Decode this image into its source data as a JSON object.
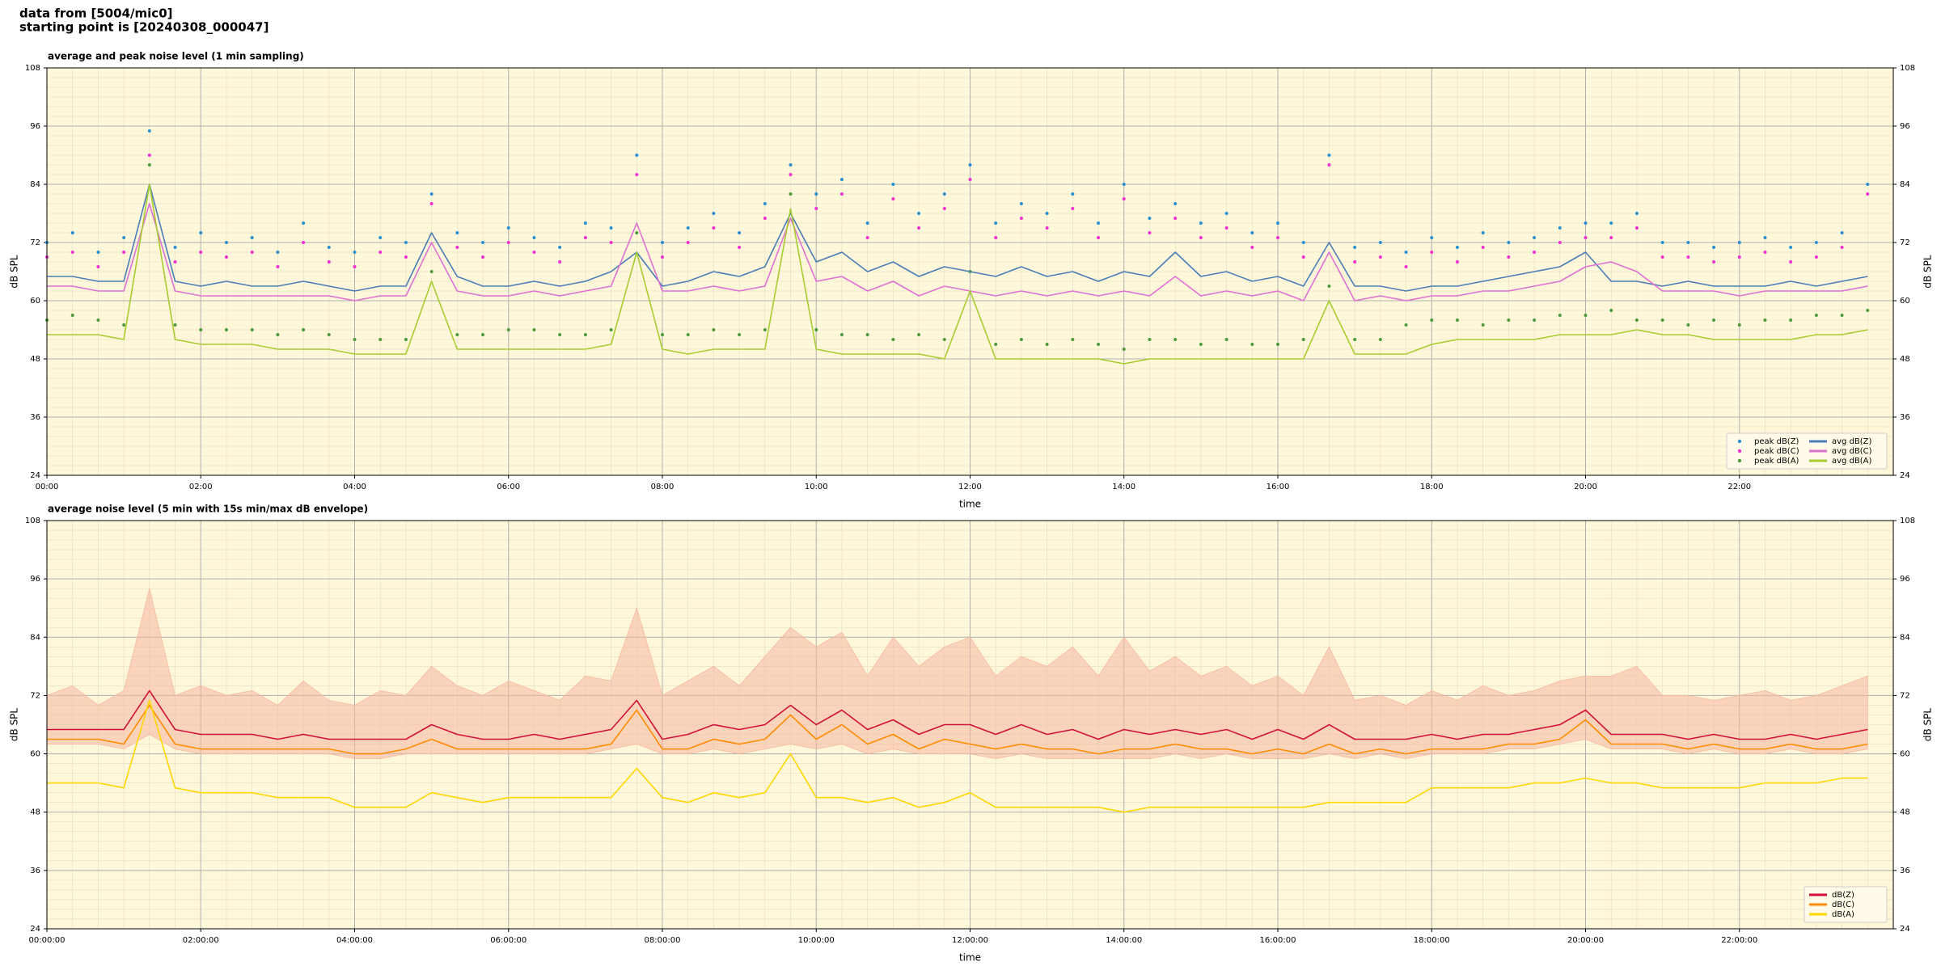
{
  "header": {
    "lines": [
      "data from [5004/mic0]",
      "starting point is [20240308_000047]"
    ]
  },
  "chart_data": [
    {
      "type": "line",
      "title": "average and peak noise level (1 min sampling)",
      "xlabel": "time",
      "ylabel": "dB SPL",
      "x": [
        "00:00",
        "00:20",
        "00:40",
        "01:00",
        "01:20",
        "01:40",
        "02:00",
        "02:20",
        "02:40",
        "03:00",
        "03:20",
        "03:40",
        "04:00",
        "04:20",
        "04:40",
        "05:00",
        "05:20",
        "05:40",
        "06:00",
        "06:20",
        "06:40",
        "07:00",
        "07:20",
        "07:40",
        "08:00",
        "08:20",
        "08:40",
        "09:00",
        "09:20",
        "09:40",
        "10:00",
        "10:20",
        "10:40",
        "11:00",
        "11:20",
        "11:40",
        "12:00",
        "12:20",
        "12:40",
        "13:00",
        "13:20",
        "13:40",
        "14:00",
        "14:20",
        "14:40",
        "15:00",
        "15:20",
        "15:40",
        "16:00",
        "16:20",
        "16:40",
        "17:00",
        "17:20",
        "17:40",
        "18:00",
        "18:20",
        "18:40",
        "19:00",
        "19:20",
        "19:40",
        "20:00",
        "20:20",
        "20:40",
        "21:00",
        "21:20",
        "21:40",
        "22:00",
        "22:20",
        "22:40",
        "23:00",
        "23:20",
        "23:40"
      ],
      "xlim": [
        "00:00",
        "24:00"
      ],
      "xticks": [
        "00:00",
        "02:00",
        "04:00",
        "06:00",
        "08:00",
        "10:00",
        "12:00",
        "14:00",
        "16:00",
        "18:00",
        "20:00",
        "22:00"
      ],
      "ylim": [
        24,
        108
      ],
      "yticks": [
        24,
        36,
        48,
        60,
        72,
        84,
        96,
        108
      ],
      "grid": true,
      "legend": "lower right",
      "legend_columns": 2,
      "series": [
        {
          "name": "peak dB(Z)",
          "kind": "scatter",
          "color": "#2b8fd0",
          "values": [
            72,
            74,
            70,
            73,
            95,
            71,
            74,
            72,
            73,
            70,
            76,
            71,
            70,
            73,
            72,
            82,
            74,
            72,
            75,
            73,
            71,
            76,
            75,
            90,
            72,
            75,
            78,
            74,
            80,
            88,
            82,
            85,
            76,
            84,
            78,
            82,
            88,
            76,
            80,
            78,
            82,
            76,
            84,
            77,
            80,
            76,
            78,
            74,
            76,
            72,
            90,
            71,
            72,
            70,
            73,
            71,
            74,
            72,
            73,
            75,
            76,
            76,
            78,
            72,
            72,
            71,
            72,
            73,
            71,
            72,
            74,
            84
          ]
        },
        {
          "name": "peak dB(C)",
          "kind": "scatter",
          "color": "#f030d0",
          "values": [
            69,
            70,
            67,
            70,
            90,
            68,
            70,
            69,
            70,
            67,
            72,
            68,
            67,
            70,
            69,
            80,
            71,
            69,
            72,
            70,
            68,
            73,
            72,
            86,
            69,
            72,
            75,
            71,
            77,
            86,
            79,
            82,
            73,
            81,
            75,
            79,
            85,
            73,
            77,
            75,
            79,
            73,
            81,
            74,
            77,
            73,
            75,
            71,
            73,
            69,
            88,
            68,
            69,
            67,
            70,
            68,
            71,
            69,
            70,
            72,
            73,
            73,
            75,
            69,
            69,
            68,
            69,
            70,
            68,
            69,
            71,
            82
          ]
        },
        {
          "name": "peak dB(A)",
          "kind": "scatter",
          "color": "#4f9a3c",
          "values": [
            56,
            57,
            56,
            55,
            88,
            55,
            54,
            54,
            54,
            53,
            54,
            53,
            52,
            52,
            52,
            66,
            53,
            53,
            54,
            54,
            53,
            53,
            54,
            74,
            53,
            53,
            54,
            53,
            54,
            82,
            54,
            53,
            53,
            52,
            53,
            52,
            66,
            51,
            52,
            51,
            52,
            51,
            50,
            52,
            52,
            51,
            52,
            51,
            51,
            52,
            63,
            52,
            52,
            55,
            56,
            56,
            55,
            56,
            56,
            57,
            57,
            58,
            56,
            56,
            55,
            56,
            55,
            56,
            56,
            57,
            57,
            58
          ]
        },
        {
          "name": "avg dB(Z)",
          "kind": "line",
          "color": "#4a7db8",
          "values": [
            65,
            65,
            64,
            64,
            84,
            64,
            63,
            64,
            63,
            63,
            64,
            63,
            62,
            63,
            63,
            74,
            65,
            63,
            63,
            64,
            63,
            64,
            66,
            70,
            63,
            64,
            66,
            65,
            67,
            78,
            68,
            70,
            66,
            68,
            65,
            67,
            66,
            65,
            67,
            65,
            66,
            64,
            66,
            65,
            70,
            65,
            66,
            64,
            65,
            63,
            72,
            63,
            63,
            62,
            63,
            63,
            64,
            65,
            66,
            67,
            70,
            64,
            64,
            63,
            64,
            63,
            63,
            63,
            64,
            63,
            64,
            65
          ]
        },
        {
          "name": "avg dB(C)",
          "kind": "line",
          "color": "#e070d4",
          "values": [
            63,
            63,
            62,
            62,
            80,
            62,
            61,
            61,
            61,
            61,
            61,
            61,
            60,
            61,
            61,
            72,
            62,
            61,
            61,
            62,
            61,
            62,
            63,
            76,
            62,
            62,
            63,
            62,
            63,
            77,
            64,
            65,
            62,
            64,
            61,
            63,
            62,
            61,
            62,
            61,
            62,
            61,
            62,
            61,
            65,
            61,
            62,
            61,
            62,
            60,
            70,
            60,
            61,
            60,
            61,
            61,
            62,
            62,
            63,
            64,
            67,
            68,
            66,
            62,
            62,
            62,
            61,
            62,
            62,
            62,
            62,
            63
          ]
        },
        {
          "name": "avg dB(A)",
          "kind": "line",
          "color": "#a8cc30",
          "values": [
            53,
            53,
            53,
            52,
            84,
            52,
            51,
            51,
            51,
            50,
            50,
            50,
            49,
            49,
            49,
            64,
            50,
            50,
            50,
            50,
            50,
            50,
            51,
            70,
            50,
            49,
            50,
            50,
            50,
            79,
            50,
            49,
            49,
            49,
            49,
            48,
            62,
            48,
            48,
            48,
            48,
            48,
            47,
            48,
            48,
            48,
            48,
            48,
            48,
            48,
            60,
            49,
            49,
            49,
            51,
            52,
            52,
            52,
            52,
            53,
            53,
            53,
            54,
            53,
            53,
            52,
            52,
            52,
            52,
            53,
            53,
            54
          ]
        }
      ]
    },
    {
      "type": "line",
      "title": "average noise level (5 min with 15s min/max dB envelope)",
      "xlabel": "time",
      "ylabel": "dB SPL",
      "x": [
        "00:00:00",
        "00:20:00",
        "00:40:00",
        "01:00:00",
        "01:20:00",
        "01:40:00",
        "02:00:00",
        "02:20:00",
        "02:40:00",
        "03:00:00",
        "03:20:00",
        "03:40:00",
        "04:00:00",
        "04:20:00",
        "04:40:00",
        "05:00:00",
        "05:20:00",
        "05:40:00",
        "06:00:00",
        "06:20:00",
        "06:40:00",
        "07:00:00",
        "07:20:00",
        "07:40:00",
        "08:00:00",
        "08:20:00",
        "08:40:00",
        "09:00:00",
        "09:20:00",
        "09:40:00",
        "10:00:00",
        "10:20:00",
        "10:40:00",
        "11:00:00",
        "11:20:00",
        "11:40:00",
        "12:00:00",
        "12:20:00",
        "12:40:00",
        "13:00:00",
        "13:20:00",
        "13:40:00",
        "14:00:00",
        "14:20:00",
        "14:40:00",
        "15:00:00",
        "15:20:00",
        "15:40:00",
        "16:00:00",
        "16:20:00",
        "16:40:00",
        "17:00:00",
        "17:20:00",
        "17:40:00",
        "18:00:00",
        "18:20:00",
        "18:40:00",
        "19:00:00",
        "19:20:00",
        "19:40:00",
        "20:00:00",
        "20:20:00",
        "20:40:00",
        "21:00:00",
        "21:20:00",
        "21:40:00",
        "22:00:00",
        "22:20:00",
        "22:40:00",
        "23:00:00",
        "23:20:00",
        "23:40:00"
      ],
      "xlim": [
        "00:00:00",
        "24:00:00"
      ],
      "xticks": [
        "00:00:00",
        "02:00:00",
        "04:00:00",
        "06:00:00",
        "08:00:00",
        "10:00:00",
        "12:00:00",
        "14:00:00",
        "16:00:00",
        "18:00:00",
        "20:00:00",
        "22:00:00"
      ],
      "ylim": [
        24,
        108
      ],
      "yticks": [
        24,
        36,
        48,
        60,
        72,
        84,
        96,
        108
      ],
      "grid": true,
      "legend": "lower right",
      "legend_columns": 1,
      "envelope": {
        "color": "#f6b8a0",
        "max": [
          72,
          74,
          70,
          73,
          94,
          72,
          74,
          72,
          73,
          70,
          75,
          71,
          70,
          73,
          72,
          78,
          74,
          72,
          75,
          73,
          71,
          76,
          75,
          90,
          72,
          75,
          78,
          74,
          80,
          86,
          82,
          85,
          76,
          84,
          78,
          82,
          84,
          76,
          80,
          78,
          82,
          76,
          84,
          77,
          80,
          76,
          78,
          74,
          76,
          72,
          82,
          71,
          72,
          70,
          73,
          71,
          74,
          72,
          73,
          75,
          76,
          76,
          78,
          72,
          72,
          71,
          72,
          73,
          71,
          72,
          74,
          76
        ],
        "min": [
          62,
          62,
          62,
          61,
          64,
          61,
          60,
          60,
          60,
          60,
          60,
          60,
          59,
          59,
          60,
          60,
          60,
          60,
          60,
          60,
          60,
          60,
          61,
          62,
          60,
          60,
          61,
          60,
          61,
          62,
          61,
          62,
          60,
          61,
          60,
          60,
          60,
          59,
          60,
          59,
          59,
          59,
          59,
          59,
          60,
          59,
          60,
          59,
          59,
          59,
          60,
          59,
          60,
          59,
          60,
          60,
          60,
          61,
          61,
          62,
          63,
          61,
          61,
          61,
          60,
          61,
          60,
          60,
          61,
          60,
          60,
          61
        ]
      },
      "series": [
        {
          "name": "dB(Z)",
          "kind": "line",
          "color": "#d01038",
          "values": [
            65,
            65,
            65,
            65,
            73,
            65,
            64,
            64,
            64,
            63,
            64,
            63,
            63,
            63,
            63,
            66,
            64,
            63,
            63,
            64,
            63,
            64,
            65,
            71,
            63,
            64,
            66,
            65,
            66,
            70,
            66,
            69,
            65,
            67,
            64,
            66,
            66,
            64,
            66,
            64,
            65,
            63,
            65,
            64,
            65,
            64,
            65,
            63,
            65,
            63,
            66,
            63,
            63,
            63,
            64,
            63,
            64,
            64,
            65,
            66,
            69,
            64,
            64,
            64,
            63,
            64,
            63,
            63,
            64,
            63,
            64,
            65
          ]
        },
        {
          "name": "dB(C)",
          "kind": "line",
          "color": "#ff8c00",
          "values": [
            63,
            63,
            63,
            62,
            70,
            62,
            61,
            61,
            61,
            61,
            61,
            61,
            60,
            60,
            61,
            63,
            61,
            61,
            61,
            61,
            61,
            61,
            62,
            69,
            61,
            61,
            63,
            62,
            63,
            68,
            63,
            66,
            62,
            64,
            61,
            63,
            62,
            61,
            62,
            61,
            61,
            60,
            61,
            61,
            62,
            61,
            61,
            60,
            61,
            60,
            62,
            60,
            61,
            60,
            61,
            61,
            61,
            62,
            62,
            63,
            67,
            62,
            62,
            62,
            61,
            62,
            61,
            61,
            62,
            61,
            61,
            62
          ]
        },
        {
          "name": "dB(A)",
          "kind": "line",
          "color": "#ffd700",
          "values": [
            54,
            54,
            54,
            53,
            71,
            53,
            52,
            52,
            52,
            51,
            51,
            51,
            49,
            49,
            49,
            52,
            51,
            50,
            51,
            51,
            51,
            51,
            51,
            57,
            51,
            50,
            52,
            51,
            52,
            60,
            51,
            51,
            50,
            51,
            49,
            50,
            52,
            49,
            49,
            49,
            49,
            49,
            48,
            49,
            49,
            49,
            49,
            49,
            49,
            49,
            50,
            50,
            50,
            50,
            53,
            53,
            53,
            53,
            54,
            54,
            55,
            54,
            54,
            53,
            53,
            53,
            53,
            54,
            54,
            54,
            55,
            55
          ]
        }
      ]
    }
  ]
}
